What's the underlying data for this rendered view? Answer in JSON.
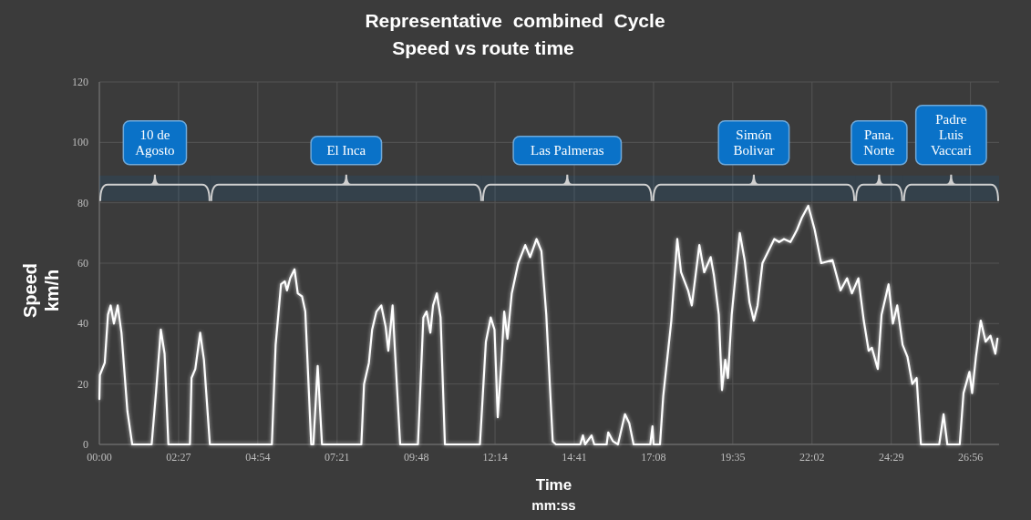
{
  "chart_data": {
    "type": "line",
    "title": "Representative  combined  Cycle",
    "subtitle": "Speed vs route time",
    "xlabel": "Time\nmm:ss",
    "ylabel": "Speed\nkm/h",
    "xlim": [
      0,
      1669
    ],
    "ylim": [
      0,
      120
    ],
    "yticks": [
      0,
      20,
      40,
      60,
      80,
      100,
      120
    ],
    "xticks": [
      {
        "value": 0,
        "label": "00:00"
      },
      {
        "value": 147,
        "label": "02:27"
      },
      {
        "value": 294,
        "label": "04:54"
      },
      {
        "value": 441,
        "label": "07:21"
      },
      {
        "value": 588,
        "label": "09:48"
      },
      {
        "value": 734,
        "label": "12:14"
      },
      {
        "value": 881,
        "label": "14:41"
      },
      {
        "value": 1028,
        "label": "17:08"
      },
      {
        "value": 1175,
        "label": "19:35"
      },
      {
        "value": 1322,
        "label": "22:02"
      },
      {
        "value": 1469,
        "label": "24:29"
      },
      {
        "value": 1616,
        "label": "26:56"
      }
    ],
    "grid": true,
    "marker": "none",
    "line_style": "solid",
    "series": [
      {
        "color": "#ffffff",
        "x": [
          0,
          1,
          10,
          16,
          21,
          27,
          34,
          41,
          52,
          61,
          97,
          105,
          114,
          121,
          128,
          168,
          171,
          178,
          187,
          194,
          205,
          320,
          327,
          337,
          344,
          348,
          354,
          362,
          368,
          376,
          382,
          393,
          397,
          405,
          413,
          486,
          491,
          500,
          506,
          514,
          523,
          531,
          536,
          544,
          548,
          558,
          591,
          601,
          607,
          614,
          619,
          626,
          633,
          641,
          706,
          717,
          726,
          733,
          739,
          746,
          751,
          757,
          765,
          777,
          790,
          799,
          811,
          820,
          829,
          841,
          847,
          892,
          897,
          901,
          913,
          918,
          941,
          944,
          953,
          962,
          975,
          983,
          991,
          1022,
          1026,
          1028,
          1040,
          1046,
          1061,
          1072,
          1079,
          1092,
          1099,
          1113,
          1122,
          1134,
          1140,
          1149,
          1155,
          1161,
          1166,
          1173,
          1188,
          1197,
          1206,
          1214,
          1221,
          1230,
          1252,
          1261,
          1270,
          1282,
          1288,
          1294,
          1303,
          1315,
          1327,
          1339,
          1360,
          1375,
          1387,
          1396,
          1408,
          1418,
          1427,
          1433,
          1444,
          1451,
          1464,
          1472,
          1480,
          1490,
          1499,
          1508,
          1516,
          1524,
          1558,
          1566,
          1573,
          1596,
          1603,
          1614,
          1619,
          1626,
          1635,
          1644,
          1653,
          1662,
          1666
        ],
        "values": [
          15,
          23,
          27,
          43,
          46,
          40,
          46,
          37,
          11,
          0,
          0,
          17,
          38,
          30,
          0,
          0,
          22,
          25,
          37,
          28,
          0,
          0,
          33,
          53,
          54,
          51,
          55,
          58,
          50,
          49,
          44,
          0,
          0,
          26,
          0,
          0,
          20,
          27,
          38,
          44,
          46,
          39,
          31,
          46,
          32,
          0,
          0,
          42,
          44,
          37,
          46,
          50,
          42,
          0,
          0,
          34,
          42,
          38,
          9,
          28,
          44,
          35,
          50,
          60,
          66,
          62,
          68,
          64,
          43,
          1,
          0,
          0,
          3,
          0,
          3,
          0,
          0,
          4,
          1,
          0,
          10,
          7,
          0,
          0,
          6,
          0,
          0,
          16,
          41,
          68,
          57,
          51,
          46,
          66,
          57,
          62,
          56,
          43,
          18,
          28,
          22,
          43,
          70,
          61,
          47,
          41,
          46,
          60,
          68,
          67,
          68,
          67,
          69,
          71,
          75,
          79,
          71,
          60,
          61,
          51,
          55,
          50,
          55,
          41,
          31,
          32,
          25,
          43,
          53,
          40,
          46,
          33,
          29,
          20,
          22,
          0,
          0,
          10,
          0,
          0,
          17,
          24,
          17,
          29,
          41,
          34,
          36,
          30,
          35
        ]
      }
    ],
    "bands": [
      {
        "axis": "x",
        "from": 0,
        "to": 206,
        "label": "10 de\nAgosto",
        "color": "#0a72c8"
      },
      {
        "axis": "x",
        "from": 206,
        "to": 710,
        "label": "El Inca",
        "color": "#0a72c8"
      },
      {
        "axis": "x",
        "from": 710,
        "to": 1026,
        "label": "Las Palmeras",
        "color": "#0a72c8"
      },
      {
        "axis": "x",
        "from": 1026,
        "to": 1402,
        "label": "Simón\nBolivar",
        "color": "#0a72c8"
      },
      {
        "axis": "x",
        "from": 1402,
        "to": 1491,
        "label": "Pana.\nNorte",
        "color": "#0a72c8"
      },
      {
        "axis": "x",
        "from": 1491,
        "to": 1669,
        "label": "Padre\nLuis\nVaccari",
        "color": "#0a72c8"
      }
    ]
  }
}
